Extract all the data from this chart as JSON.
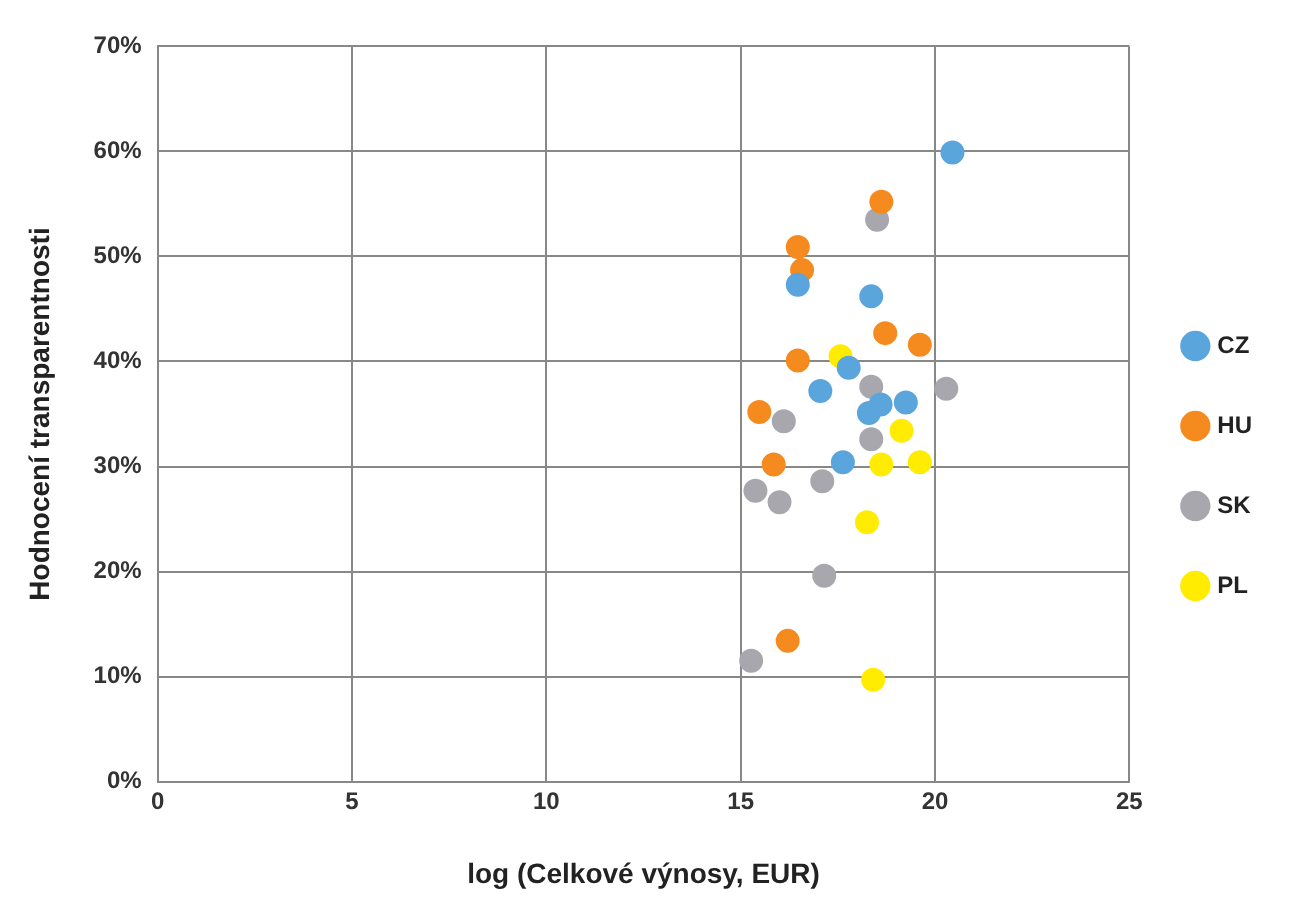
{
  "chart_data": {
    "type": "scatter",
    "xlabel": "log (Celkové výnosy, EUR)",
    "ylabel": "Hodnocení transparentnosti",
    "xlim": [
      0,
      25
    ],
    "xticks": [
      0,
      5,
      10,
      15,
      20,
      25
    ],
    "ylim": [
      0,
      70
    ],
    "yticks": [
      {
        "value": 0,
        "label": "0%"
      },
      {
        "value": 10,
        "label": "10%"
      },
      {
        "value": 20,
        "label": "20%"
      },
      {
        "value": 30,
        "label": "30%"
      },
      {
        "value": 40,
        "label": "40%"
      },
      {
        "value": 50,
        "label": "50%"
      },
      {
        "value": 60,
        "label": "60%"
      },
      {
        "value": 70,
        "label": "70%"
      }
    ],
    "grid": true,
    "legend": "right",
    "marker": "circle",
    "series": [
      {
        "name": "CZ",
        "color": "#5aa5dc",
        "x": [
          20.45,
          16.47,
          18.36,
          17.05,
          17.78,
          19.25,
          18.3,
          18.6,
          17.63
        ],
        "values": [
          59.9,
          47.3,
          46.2,
          37.2,
          39.4,
          36.1,
          35.1,
          35.9,
          30.4
        ]
      },
      {
        "name": "HU",
        "color": "#f58a1f",
        "x": [
          18.62,
          16.47,
          16.58,
          18.72,
          19.61,
          16.47,
          15.48,
          15.85,
          16.21
        ],
        "values": [
          55.2,
          50.9,
          48.7,
          42.7,
          41.6,
          40.1,
          35.2,
          30.2,
          13.4
        ]
      },
      {
        "name": "SK",
        "color": "#a8a7ae",
        "x": [
          18.51,
          18.36,
          20.29,
          16.11,
          18.36,
          17.1,
          15.38,
          16.0,
          17.15,
          15.27
        ],
        "values": [
          53.5,
          37.6,
          37.4,
          34.3,
          32.6,
          28.6,
          27.7,
          26.6,
          19.6,
          11.5
        ]
      },
      {
        "name": "PL",
        "color": "#ffec00",
        "x": [
          17.57,
          19.14,
          18.62,
          19.61,
          18.25,
          18.41
        ],
        "values": [
          40.5,
          33.4,
          30.2,
          30.4,
          24.7,
          9.7
        ]
      }
    ]
  }
}
